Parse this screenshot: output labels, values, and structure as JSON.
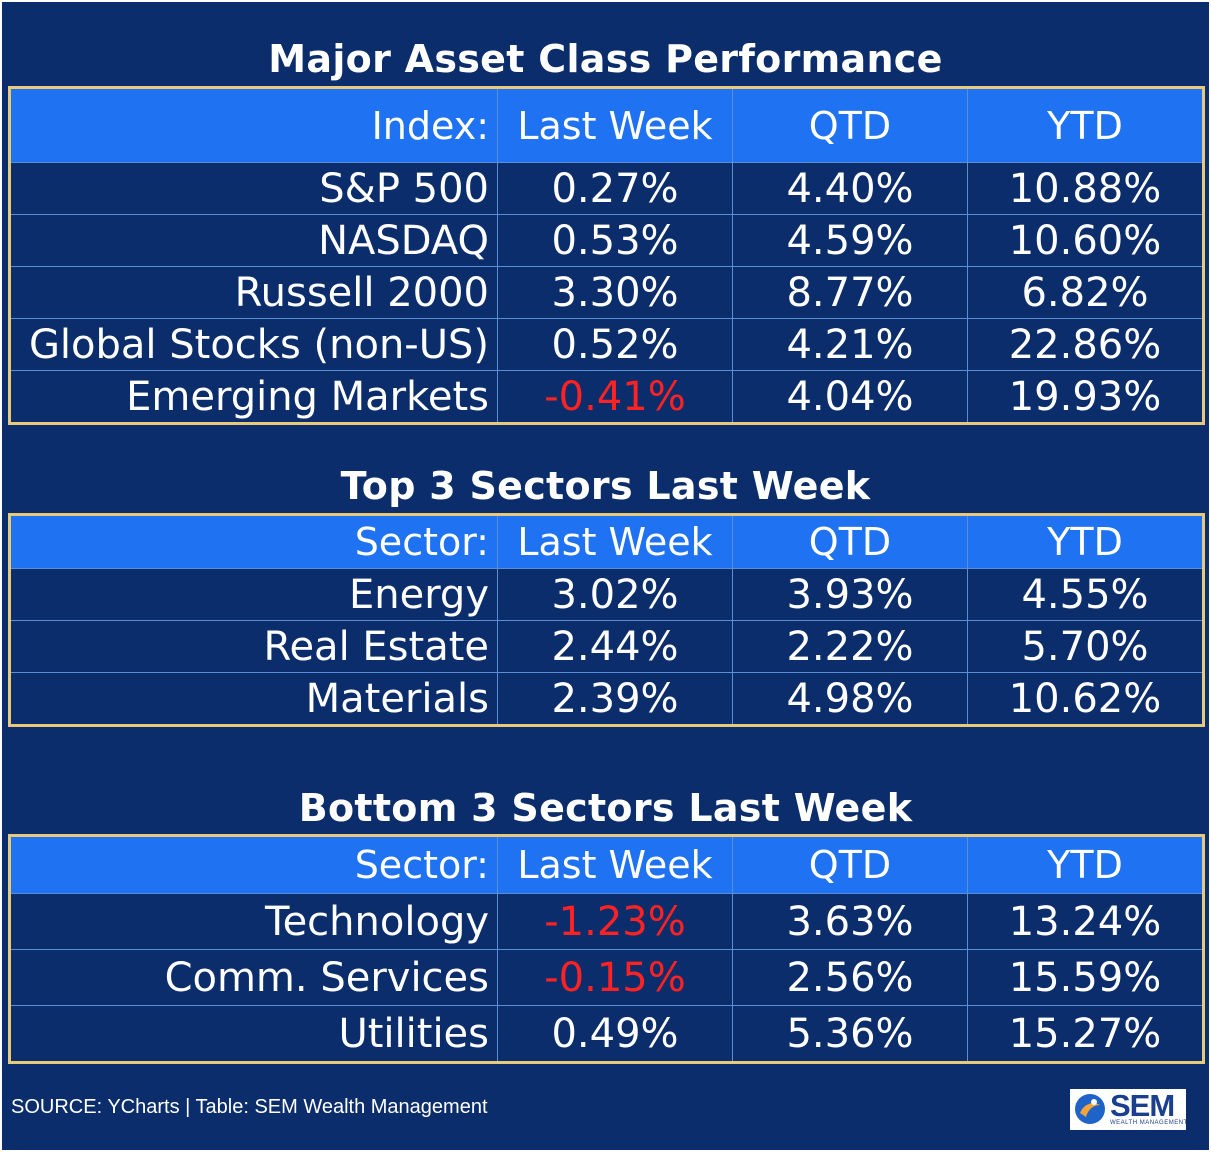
{
  "sections": [
    {
      "title": "Major Asset Class Performance",
      "headers": [
        "Index:",
        "Last Week",
        "QTD",
        "YTD"
      ],
      "rows": [
        {
          "name": "S&P 500",
          "last_week": "0.27%",
          "qtd": "4.40%",
          "ytd": "10.88%"
        },
        {
          "name": "NASDAQ",
          "last_week": "0.53%",
          "qtd": "4.59%",
          "ytd": "10.60%"
        },
        {
          "name": "Russell 2000",
          "last_week": "3.30%",
          "qtd": "8.77%",
          "ytd": "6.82%"
        },
        {
          "name": "Global Stocks (non-US)",
          "last_week": "0.52%",
          "qtd": "4.21%",
          "ytd": "22.86%"
        },
        {
          "name": "Emerging Markets",
          "last_week": "-0.41%",
          "qtd": "4.04%",
          "ytd": "19.93%"
        }
      ]
    },
    {
      "title": "Top 3 Sectors Last Week",
      "headers": [
        "Sector:",
        "Last Week",
        "QTD",
        "YTD"
      ],
      "rows": [
        {
          "name": "Energy",
          "last_week": "3.02%",
          "qtd": "3.93%",
          "ytd": "4.55%"
        },
        {
          "name": "Real Estate",
          "last_week": "2.44%",
          "qtd": "2.22%",
          "ytd": "5.70%"
        },
        {
          "name": "Materials",
          "last_week": "2.39%",
          "qtd": "4.98%",
          "ytd": "10.62%"
        }
      ]
    },
    {
      "title": "Bottom 3 Sectors Last Week",
      "headers": [
        "Sector:",
        "Last Week",
        "QTD",
        "YTD"
      ],
      "rows": [
        {
          "name": "Technology",
          "last_week": "-1.23%",
          "qtd": "3.63%",
          "ytd": "13.24%"
        },
        {
          "name": "Comm. Services",
          "last_week": "-0.15%",
          "qtd": "2.56%",
          "ytd": "15.59%"
        },
        {
          "name": "Utilities",
          "last_week": "0.49%",
          "qtd": "5.36%",
          "ytd": "15.27%"
        }
      ]
    }
  ],
  "footer": {
    "source": "SOURCE: YCharts | Table: SEM Wealth Management"
  },
  "logo": {
    "text": "SEM",
    "subtext": "WEALTH MANAGEMENT"
  },
  "colors": {
    "background": "#0b2d6b",
    "header": "#1f72f2",
    "border": "#e7c97a",
    "negative": "#ff2222",
    "text": "#ffffff"
  }
}
